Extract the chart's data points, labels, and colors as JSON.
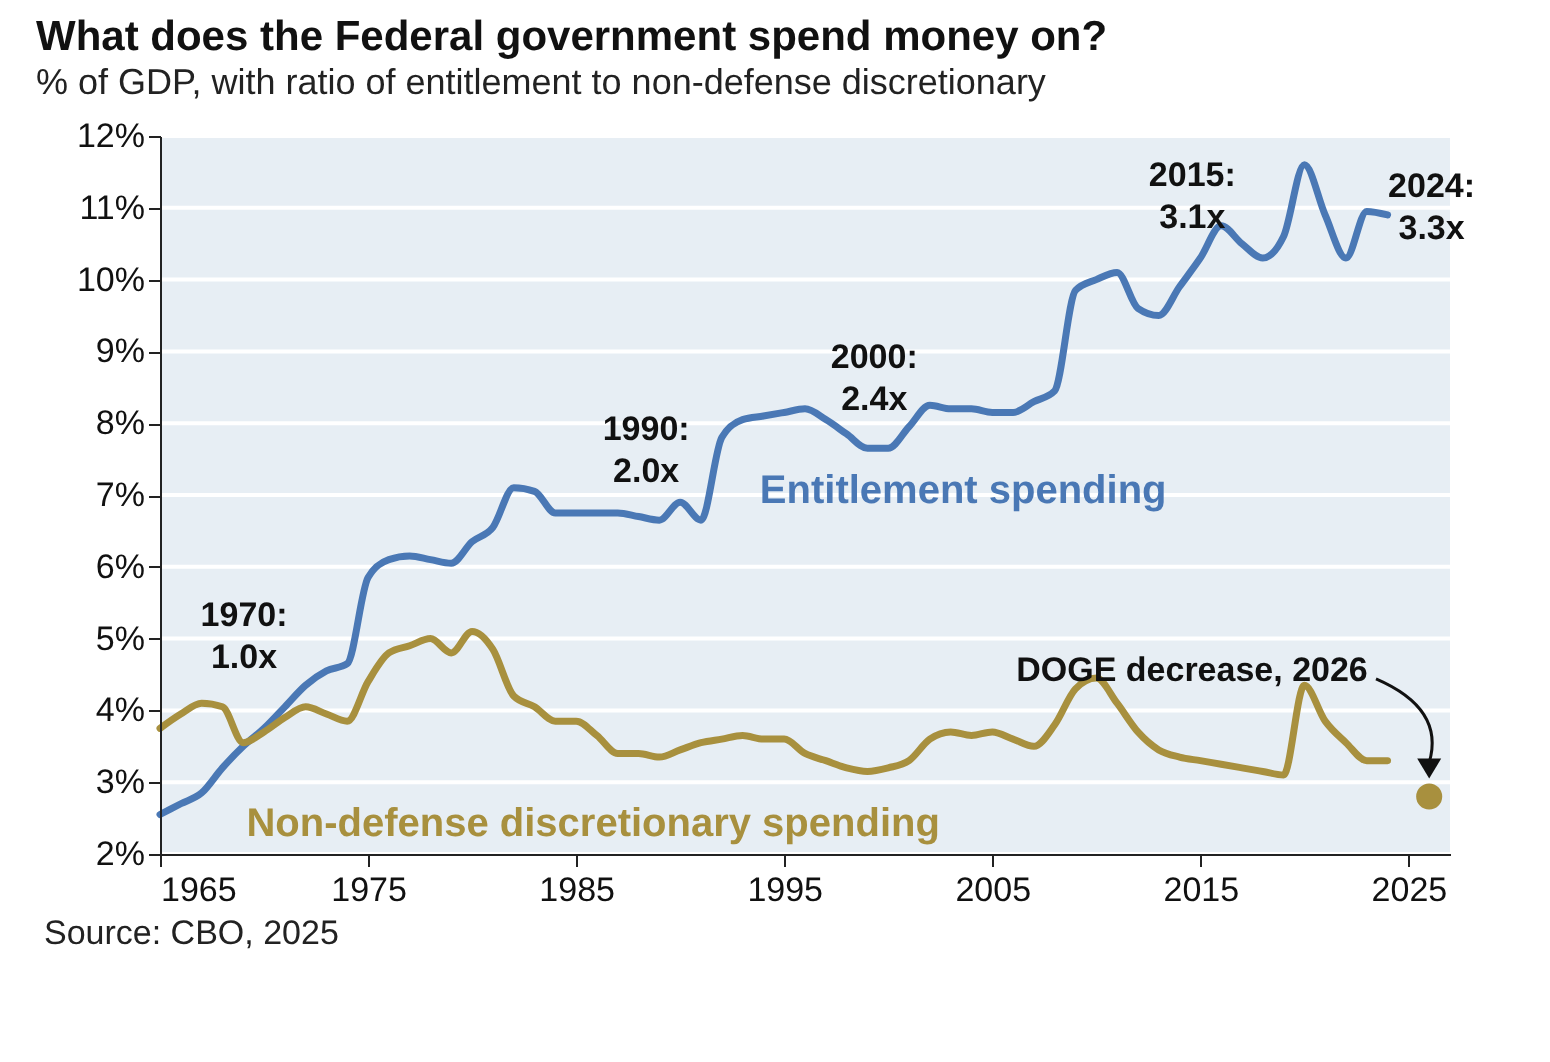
{
  "chart_data": {
    "type": "line",
    "title": "What does the Federal government spend money on?",
    "subtitle": "% of GDP, with ratio of entitlement to non-defense discretionary",
    "x": [
      1965,
      1966,
      1967,
      1968,
      1969,
      1970,
      1971,
      1972,
      1973,
      1974,
      1975,
      1976,
      1977,
      1978,
      1979,
      1980,
      1981,
      1982,
      1983,
      1984,
      1985,
      1986,
      1987,
      1988,
      1989,
      1990,
      1991,
      1992,
      1993,
      1994,
      1995,
      1996,
      1997,
      1998,
      1999,
      2000,
      2001,
      2002,
      2003,
      2004,
      2005,
      2006,
      2007,
      2008,
      2009,
      2010,
      2011,
      2012,
      2013,
      2014,
      2015,
      2016,
      2017,
      2018,
      2019,
      2020,
      2021,
      2022,
      2023,
      2024
    ],
    "series": [
      {
        "name": "Entitlement spending",
        "color": "#4a78b5",
        "values": [
          2.55,
          2.7,
          2.85,
          3.2,
          3.5,
          3.75,
          4.05,
          4.35,
          4.55,
          4.65,
          5.85,
          6.1,
          6.15,
          6.1,
          6.05,
          6.35,
          6.55,
          7.1,
          7.05,
          6.75,
          6.75,
          6.75,
          6.75,
          6.7,
          6.65,
          6.9,
          6.65,
          7.8,
          8.05,
          8.1,
          8.15,
          8.2,
          8.05,
          7.85,
          7.65,
          7.65,
          7.95,
          8.25,
          8.2,
          8.2,
          8.15,
          8.15,
          8.3,
          8.45,
          9.85,
          10.0,
          10.1,
          9.6,
          9.5,
          9.9,
          10.3,
          10.75,
          10.5,
          10.3,
          10.6,
          11.6,
          10.9,
          10.3,
          10.95,
          10.9
        ]
      },
      {
        "name": "Non-defense discretionary spending",
        "color": "#a8903e",
        "values": [
          3.75,
          3.95,
          4.1,
          4.05,
          3.55,
          3.7,
          3.9,
          4.05,
          3.95,
          3.85,
          4.4,
          4.8,
          4.9,
          5.0,
          4.8,
          5.1,
          4.85,
          4.2,
          4.05,
          3.85,
          3.85,
          3.65,
          3.4,
          3.4,
          3.35,
          3.45,
          3.55,
          3.6,
          3.65,
          3.6,
          3.6,
          3.4,
          3.3,
          3.2,
          3.15,
          3.2,
          3.3,
          3.6,
          3.7,
          3.65,
          3.7,
          3.6,
          3.5,
          3.8,
          4.3,
          4.45,
          4.1,
          3.7,
          3.45,
          3.35,
          3.3,
          3.25,
          3.2,
          3.15,
          3.1,
          4.35,
          3.85,
          3.55,
          3.3,
          3.3
        ]
      },
      {
        "type": "scatter",
        "color": "#a8903e",
        "x": [
          2026
        ],
        "values": [
          2.8
        ]
      }
    ],
    "xlim": [
      1965,
      2027
    ],
    "xticks": [
      1965,
      1975,
      1985,
      1995,
      2005,
      2015,
      2025
    ],
    "ylim": [
      2,
      12
    ],
    "yticks": [
      {
        "value": 2,
        "label": "2%"
      },
      {
        "value": 3,
        "label": "3%"
      },
      {
        "value": 4,
        "label": "4%"
      },
      {
        "value": 5,
        "label": "5%"
      },
      {
        "value": 6,
        "label": "6%"
      },
      {
        "value": 7,
        "label": "7%"
      },
      {
        "value": 8,
        "label": "8%"
      },
      {
        "value": 9,
        "label": "9%"
      },
      {
        "value": 10,
        "label": "10%"
      },
      {
        "value": 11,
        "label": "11%"
      },
      {
        "value": 12,
        "label": "12%"
      }
    ],
    "grid": "y",
    "legend": false,
    "annotations": [
      {
        "text": "1970:\n1.0x",
        "x": 1970,
        "y": 3.75
      },
      {
        "text": "1990:\n2.0x",
        "x": 1990,
        "y": 6.9
      },
      {
        "text": "2000:\n2.4x",
        "x": 2000,
        "y": 7.65
      },
      {
        "text": "2015:\n3.1x",
        "x": 2015,
        "y": 10.3
      },
      {
        "text": "2024:\n3.3x",
        "x": 2024,
        "y": 10.9
      },
      "DOGE decrease, 2026",
      "Source: CBO, 2025"
    ]
  }
}
